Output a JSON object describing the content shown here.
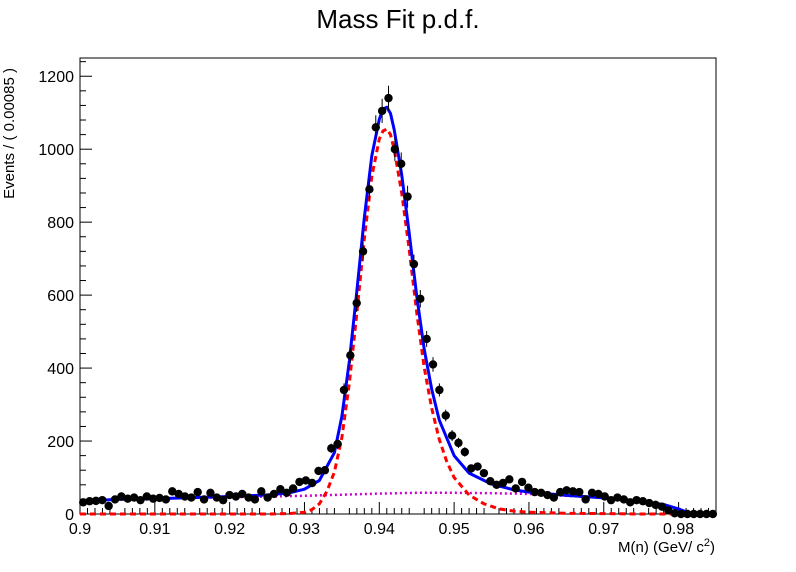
{
  "chart_data": {
    "type": "scatter",
    "title": "Mass Fit p.d.f.",
    "xlabel": "M(n) (GeV/ c",
    "xlabel_sup": "2",
    "xlabel_end": ")",
    "ylabel": "Events / ( 0.00085 )",
    "xlim": [
      0.9,
      0.985
    ],
    "ylim": [
      0,
      1250
    ],
    "x_ticks": [
      0.9,
      0.91,
      0.92,
      0.93,
      0.94,
      0.95,
      0.96,
      0.97,
      0.98
    ],
    "x_tick_labels": [
      "0.9",
      "0.91",
      "0.92",
      "0.93",
      "0.94",
      "0.95",
      "0.96",
      "0.97",
      "0.98"
    ],
    "y_ticks": [
      0,
      200,
      400,
      600,
      800,
      1000,
      1200
    ],
    "y_tick_labels": [
      "0",
      "200",
      "400",
      "600",
      "800",
      "1000",
      "1200"
    ],
    "grid": false,
    "legend": "none",
    "colors": {
      "data": "#000000",
      "total_fit": "#0000ff",
      "signal": "#ff0000",
      "background": "#cc00cc"
    },
    "series": [
      {
        "type": "points_with_errors",
        "x": [
          0.90043,
          0.90128,
          0.90213,
          0.90298,
          0.90383,
          0.90468,
          0.90553,
          0.90638,
          0.90723,
          0.90808,
          0.90893,
          0.90978,
          0.91063,
          0.91148,
          0.91233,
          0.91318,
          0.91403,
          0.91488,
          0.91573,
          0.91658,
          0.91743,
          0.91828,
          0.91913,
          0.91998,
          0.92083,
          0.92168,
          0.92253,
          0.92338,
          0.92423,
          0.92508,
          0.92593,
          0.92678,
          0.92763,
          0.92848,
          0.92933,
          0.93018,
          0.93103,
          0.93188,
          0.93273,
          0.93358,
          0.93443,
          0.93528,
          0.93613,
          0.93698,
          0.93783,
          0.93868,
          0.93953,
          0.94038,
          0.94123,
          0.94208,
          0.94293,
          0.94378,
          0.94463,
          0.94548,
          0.94633,
          0.94718,
          0.94803,
          0.94888,
          0.94973,
          0.95058,
          0.95143,
          0.95228,
          0.95313,
          0.95398,
          0.95483,
          0.95568,
          0.95653,
          0.95738,
          0.95823,
          0.95908,
          0.95993,
          0.96078,
          0.96163,
          0.96248,
          0.96333,
          0.96418,
          0.96503,
          0.96588,
          0.96673,
          0.96758,
          0.96843,
          0.96928,
          0.97013,
          0.97098,
          0.97183,
          0.97268,
          0.97353,
          0.97438,
          0.97523,
          0.97608,
          0.97693,
          0.97778,
          0.97863,
          0.97948,
          0.98033,
          0.98118,
          0.98203,
          0.98288,
          0.98373,
          0.98458
        ],
        "y": [
          32,
          35,
          36,
          38,
          22,
          40,
          48,
          42,
          45,
          38,
          48,
          42,
          44,
          40,
          62,
          55,
          48,
          45,
          60,
          40,
          58,
          45,
          38,
          52,
          48,
          55,
          45,
          40,
          62,
          45,
          55,
          68,
          58,
          70,
          88,
          92,
          85,
          118,
          120,
          180,
          192,
          340,
          435,
          578,
          720,
          890,
          1060,
          1105,
          1140,
          1000,
          960,
          870,
          685,
          590,
          480,
          410,
          340,
          270,
          215,
          195,
          170,
          125,
          130,
          112,
          90,
          80,
          85,
          95,
          70,
          88,
          72,
          60,
          58,
          52,
          45,
          60,
          65,
          62,
          60,
          40,
          58,
          55,
          48,
          38,
          45,
          40,
          32,
          38,
          35,
          30,
          25,
          20,
          10,
          2,
          0,
          0,
          0,
          0,
          0,
          0
        ],
        "err": [
          6,
          6,
          6,
          6,
          5,
          6,
          7,
          6,
          7,
          6,
          7,
          6,
          7,
          6,
          8,
          7,
          7,
          7,
          8,
          6,
          8,
          7,
          6,
          7,
          7,
          7,
          7,
          6,
          8,
          7,
          7,
          8,
          8,
          8,
          9,
          10,
          9,
          11,
          11,
          13,
          14,
          18,
          21,
          24,
          27,
          30,
          33,
          33,
          34,
          32,
          31,
          30,
          26,
          24,
          22,
          20,
          18,
          16,
          15,
          14,
          13,
          11,
          11,
          11,
          9,
          9,
          9,
          10,
          8,
          9,
          8,
          8,
          8,
          7,
          7,
          8,
          8,
          8,
          8,
          6,
          8,
          7,
          7,
          6,
          7,
          6,
          6,
          6,
          6,
          5,
          5,
          4,
          3,
          1,
          0,
          0,
          0,
          0,
          0,
          0
        ]
      },
      {
        "type": "curve",
        "style": "solid",
        "x": [
          0.9,
          0.905,
          0.91,
          0.915,
          0.92,
          0.925,
          0.928,
          0.93,
          0.932,
          0.934,
          0.935,
          0.936,
          0.937,
          0.938,
          0.939,
          0.94,
          0.9405,
          0.941,
          0.9415,
          0.942,
          0.943,
          0.944,
          0.945,
          0.946,
          0.947,
          0.948,
          0.95,
          0.952,
          0.955,
          0.958,
          0.96,
          0.965,
          0.97,
          0.975,
          0.978,
          0.98,
          0.981,
          0.982,
          0.9825
        ],
        "y": [
          35,
          40,
          42,
          45,
          48,
          52,
          58,
          68,
          92,
          168,
          268,
          420,
          610,
          812,
          982,
          1082,
          1110,
          1115,
          1098,
          1052,
          930,
          770,
          598,
          452,
          342,
          258,
          160,
          112,
          82,
          66,
          60,
          51,
          44,
          34,
          26,
          14,
          6,
          0,
          0
        ]
      },
      {
        "type": "curve",
        "style": "dashed",
        "x": [
          0.9,
          0.91,
          0.92,
          0.925,
          0.928,
          0.93,
          0.931,
          0.932,
          0.933,
          0.934,
          0.935,
          0.936,
          0.937,
          0.938,
          0.939,
          0.94,
          0.9405,
          0.941,
          0.9415,
          0.942,
          0.943,
          0.944,
          0.945,
          0.946,
          0.947,
          0.948,
          0.949,
          0.95,
          0.952,
          0.954,
          0.956,
          0.958,
          0.96,
          0.965,
          0.97,
          0.975,
          0.98,
          0.985
        ],
        "y": [
          0,
          0,
          0,
          0,
          1,
          5,
          12,
          28,
          62,
          115,
          210,
          360,
          550,
          755,
          925,
          1028,
          1050,
          1055,
          1040,
          998,
          880,
          725,
          553,
          402,
          290,
          205,
          145,
          100,
          52,
          28,
          14,
          8,
          5,
          2,
          1,
          0,
          0,
          0
        ]
      },
      {
        "type": "curve",
        "style": "dotted",
        "x": [
          0.9,
          0.905,
          0.91,
          0.915,
          0.92,
          0.925,
          0.93,
          0.935,
          0.94,
          0.945,
          0.95,
          0.955,
          0.96,
          0.965,
          0.97,
          0.975,
          0.978,
          0.98,
          0.981,
          0.982,
          0.9825
        ],
        "y": [
          35,
          40,
          42,
          44,
          46,
          48,
          50,
          53,
          56,
          58,
          58,
          57,
          55,
          50,
          44,
          34,
          26,
          14,
          6,
          0,
          0
        ]
      }
    ]
  }
}
